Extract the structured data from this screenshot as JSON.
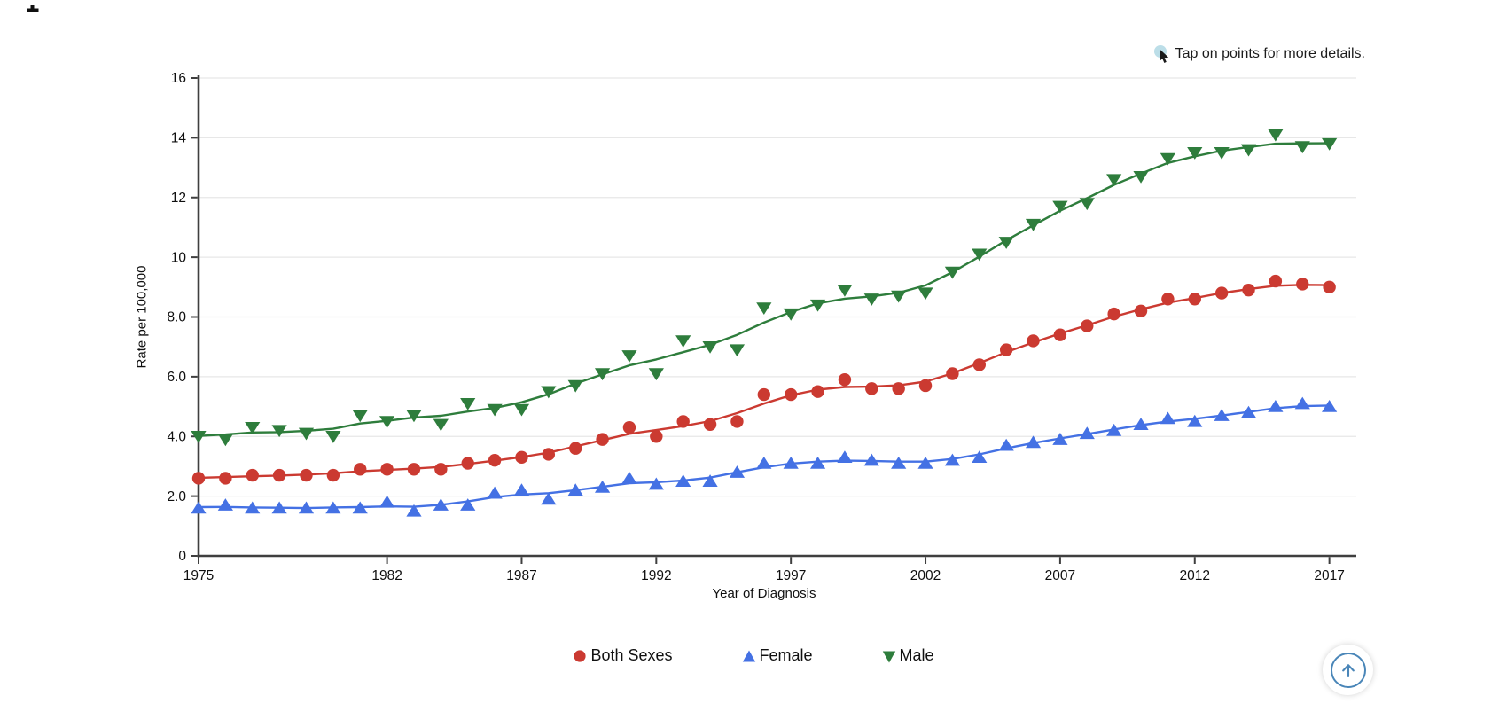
{
  "artifacts": {
    "top_left_cropped_glyph": true
  },
  "hint": {
    "text": "Tap on points for more details.",
    "icon": "cursor-icon",
    "icon_circle_color": "#BCDEE8",
    "icon_arrow_color": "#1a1a1a"
  },
  "scroll_top_button": {
    "icon": "up-arrow-icon",
    "accent_color": "#4A86B8"
  },
  "chart_data": {
    "type": "scatter",
    "title": "",
    "xlabel": "Year of Diagnosis",
    "ylabel": "Rate per 100,000",
    "xlim": [
      1975,
      2018
    ],
    "ylim": [
      0,
      16
    ],
    "grid": "horizontal-only",
    "gridline_color": "#e7e7e7",
    "axis_color": "#3f3f3f",
    "tick_label_color": "#0f0f0f",
    "legend_position": "bottom",
    "trend_line": "smoothed",
    "x_ticks": [
      1975,
      1982,
      1987,
      1992,
      1997,
      2002,
      2007,
      2012,
      2017
    ],
    "y_ticks": [
      {
        "value": 16,
        "label": "16"
      },
      {
        "value": 14,
        "label": "14"
      },
      {
        "value": 12,
        "label": "12"
      },
      {
        "value": 10,
        "label": "10"
      },
      {
        "value": 8,
        "label": "8.0"
      },
      {
        "value": 6,
        "label": "6.0"
      },
      {
        "value": 4,
        "label": "4.0"
      },
      {
        "value": 2,
        "label": "2.0"
      },
      {
        "value": 0,
        "label": "0"
      }
    ],
    "x": [
      1975,
      1976,
      1977,
      1978,
      1979,
      1980,
      1981,
      1982,
      1983,
      1984,
      1985,
      1986,
      1987,
      1988,
      1989,
      1990,
      1991,
      1992,
      1993,
      1994,
      1995,
      1996,
      1997,
      1998,
      1999,
      2000,
      2001,
      2002,
      2003,
      2004,
      2005,
      2006,
      2007,
      2008,
      2009,
      2010,
      2011,
      2012,
      2013,
      2014,
      2015,
      2016,
      2017
    ],
    "series": [
      {
        "name": "Both Sexes",
        "marker": "circle",
        "color": "#CB3A31",
        "values": [
          2.6,
          2.6,
          2.7,
          2.7,
          2.7,
          2.7,
          2.9,
          2.9,
          2.9,
          2.9,
          3.1,
          3.2,
          3.3,
          3.4,
          3.6,
          3.9,
          4.3,
          4.0,
          4.5,
          4.4,
          4.5,
          5.4,
          5.4,
          5.5,
          5.9,
          5.6,
          5.6,
          5.7,
          6.1,
          6.4,
          6.9,
          7.2,
          7.4,
          7.7,
          8.1,
          8.2,
          8.6,
          8.6,
          8.8,
          8.9,
          9.2,
          9.1,
          9.0
        ]
      },
      {
        "name": "Female",
        "marker": "triangle-up",
        "color": "#4471E4",
        "values": [
          1.6,
          1.7,
          1.6,
          1.6,
          1.6,
          1.6,
          1.6,
          1.8,
          1.5,
          1.7,
          1.7,
          2.1,
          2.2,
          1.9,
          2.2,
          2.3,
          2.6,
          2.4,
          2.5,
          2.5,
          2.8,
          3.1,
          3.1,
          3.1,
          3.3,
          3.2,
          3.1,
          3.1,
          3.2,
          3.3,
          3.7,
          3.8,
          3.9,
          4.1,
          4.2,
          4.4,
          4.6,
          4.5,
          4.7,
          4.8,
          5.0,
          5.1,
          5.0
        ]
      },
      {
        "name": "Male",
        "marker": "triangle-down",
        "color": "#2E7D3C",
        "values": [
          4.0,
          3.9,
          4.3,
          4.2,
          4.1,
          4.0,
          4.7,
          4.5,
          4.7,
          4.4,
          5.1,
          4.9,
          4.9,
          5.5,
          5.7,
          6.1,
          6.7,
          6.1,
          7.2,
          7.0,
          6.9,
          8.3,
          8.1,
          8.4,
          8.9,
          8.6,
          8.7,
          8.8,
          9.5,
          10.1,
          10.5,
          11.1,
          11.7,
          11.8,
          12.6,
          12.7,
          13.3,
          13.5,
          13.5,
          13.6,
          14.1,
          13.7,
          13.8
        ]
      }
    ]
  }
}
